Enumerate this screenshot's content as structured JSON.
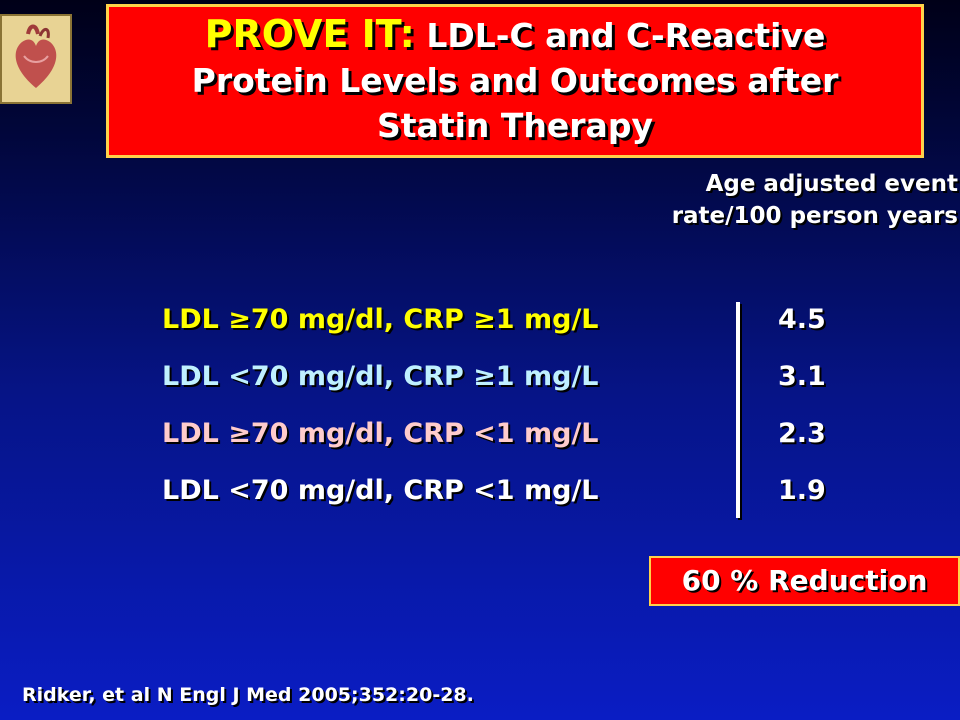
{
  "title": {
    "highlight": "PROVE IT:",
    "line1_rest": "LDL-C and C-Reactive",
    "line2": "Protein Levels and Outcomes after",
    "line3": "Statin Therapy"
  },
  "rate_label": {
    "line1": "Age adjusted event",
    "line2": "rate/100 person years"
  },
  "rows": [
    {
      "label": "LDL ≥70 mg/dl, CRP ≥1 mg/L",
      "value": "4.5",
      "color": "#ffff00"
    },
    {
      "label": "LDL <70 mg/dl, CRP ≥1 mg/L",
      "value": "3.1",
      "color": "#bff0ff"
    },
    {
      "label": "LDL ≥70 mg/dl, CRP <1 mg/L",
      "value": "2.3",
      "color": "#ffcccc"
    },
    {
      "label": "LDL <70 mg/dl, CRP <1 mg/L",
      "value": "1.9",
      "color": "#ffffff"
    }
  ],
  "reduction": "60 % Reduction",
  "citation": "Ridker, et al N Engl J Med 2005;352:20-28.",
  "colors": {
    "title_box": "#ff0000",
    "title_border": "#ffd24a",
    "highlight": "#ffff00"
  }
}
